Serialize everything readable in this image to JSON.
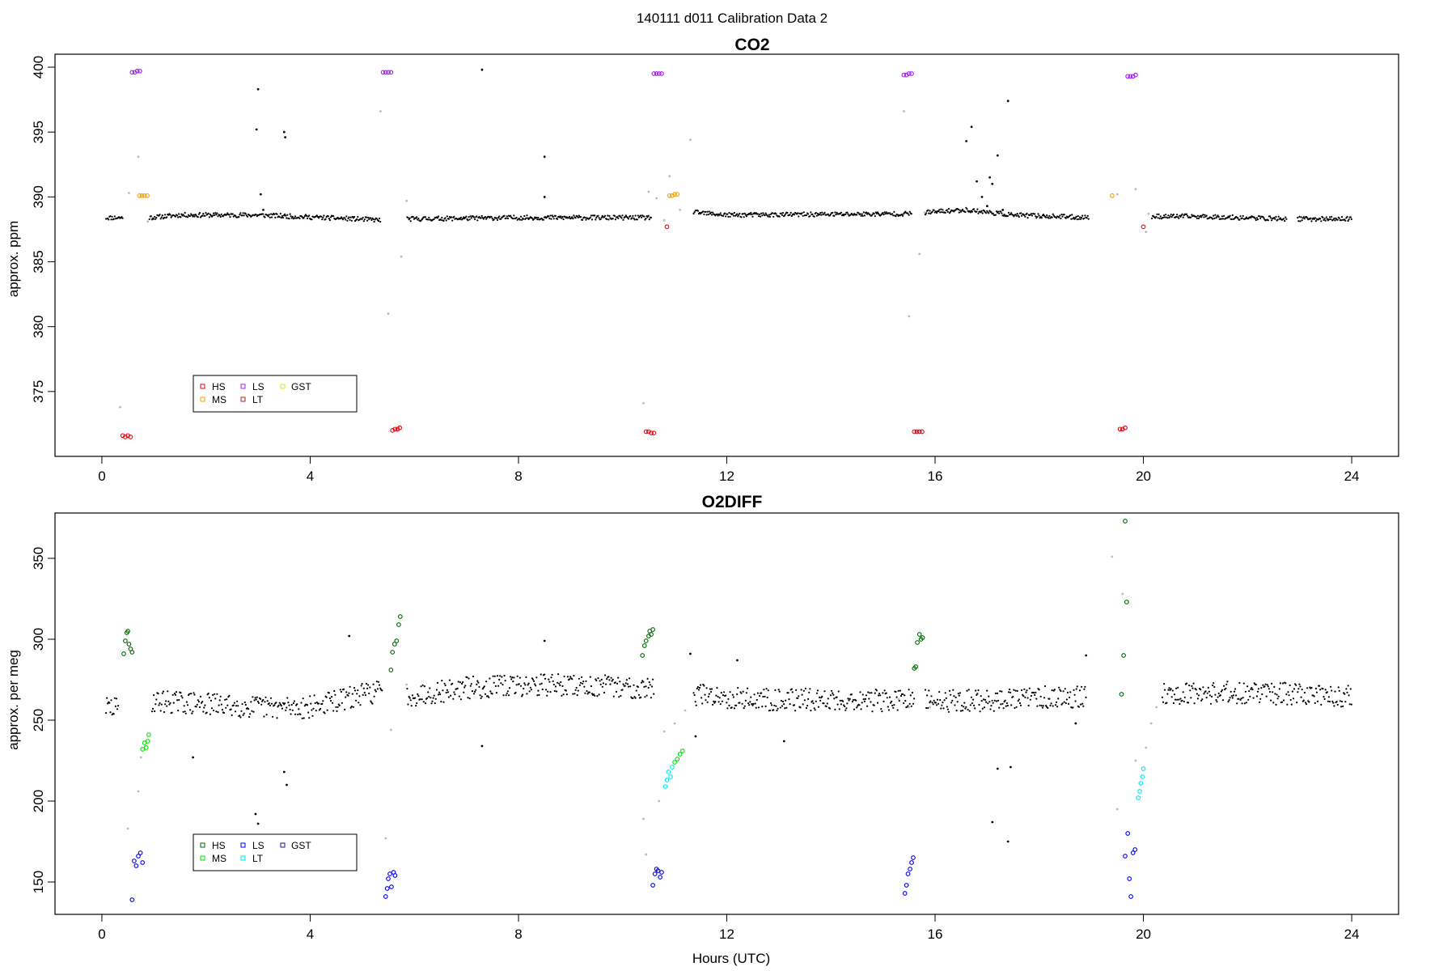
{
  "figure": {
    "suptitle": "140111   d011   Calibration Data 2",
    "xlabel": "Hours (UTC)"
  },
  "chart_data": [
    {
      "type": "scatter",
      "title": "CO2",
      "xlabel": "",
      "ylabel": "approx. ppm",
      "xlim": [
        -0.9,
        24.9
      ],
      "ylim": [
        370,
        401
      ],
      "xticks": [
        0,
        4,
        8,
        12,
        16,
        20,
        24
      ],
      "yticks": [
        375,
        380,
        385,
        390,
        395,
        400
      ],
      "legend": {
        "placement": "bottom-left",
        "entries": [
          {
            "label": "HS",
            "color": "#e8000b"
          },
          {
            "label": "MS",
            "color": "#f0a000"
          },
          {
            "label": "LS",
            "color": "#a020f0"
          },
          {
            "label": "LT",
            "color": "#b22222"
          },
          {
            "label": "GST",
            "color": "#e6e600"
          }
        ]
      },
      "baseline": {
        "color": "#000000",
        "segments": [
          {
            "x": [
              0.08,
              0.9,
              1.5,
              3.0,
              5.5,
              5.9,
              8.0,
              10.5,
              11.4,
              12.0,
              15.5,
              15.8,
              16.6,
              17.5,
              19.0,
              20.2,
              21.0,
              22.8,
              23.0,
              24.0
            ],
            "y": [
              388.4,
              388.4,
              388.6,
              388.6,
              388.2,
              388.3,
              388.4,
              388.4,
              388.8,
              388.6,
              388.7,
              388.8,
              389.0,
              388.6,
              388.4,
              388.5,
              388.5,
              388.3,
              388.3,
              388.3
            ]
          }
        ],
        "gaps": [
          [
            0.4,
            0.9
          ],
          [
            5.35,
            5.85
          ],
          [
            10.55,
            11.35
          ],
          [
            15.55,
            15.8
          ],
          [
            18.95,
            20.15
          ],
          [
            22.75,
            22.95
          ]
        ]
      },
      "series": [
        {
          "name": "HS",
          "color": "#e8000b",
          "x": [
            0.4,
            0.45,
            0.5,
            0.55
          ],
          "y": [
            371.6,
            371.5,
            371.6,
            371.5
          ]
        },
        {
          "name": "HS",
          "color": "#e8000b",
          "x": [
            5.58,
            5.63,
            5.68,
            5.72
          ],
          "y": [
            372.0,
            372.1,
            372.1,
            372.2
          ]
        },
        {
          "name": "HS",
          "color": "#e8000b",
          "x": [
            10.45,
            10.5,
            10.55,
            10.6
          ],
          "y": [
            371.9,
            371.9,
            371.8,
            371.8
          ]
        },
        {
          "name": "HS",
          "color": "#e8000b",
          "x": [
            15.6,
            15.65,
            15.7,
            15.75
          ],
          "y": [
            371.9,
            371.9,
            371.9,
            371.9
          ]
        },
        {
          "name": "HS",
          "color": "#e8000b",
          "x": [
            19.55,
            19.6,
            19.65
          ],
          "y": [
            372.1,
            372.1,
            372.2
          ]
        },
        {
          "name": "MS",
          "color": "#f0a000",
          "x": [
            0.72,
            0.77,
            0.82,
            0.87
          ],
          "y": [
            390.1,
            390.1,
            390.1,
            390.1
          ]
        },
        {
          "name": "MS",
          "color": "#f0a000",
          "x": [
            10.9,
            10.95,
            11.0,
            11.05
          ],
          "y": [
            390.1,
            390.1,
            390.2,
            390.2
          ]
        },
        {
          "name": "MS",
          "color": "#f0a000",
          "x": [
            19.4
          ],
          "y": [
            390.1
          ]
        },
        {
          "name": "LS",
          "color": "#a020f0",
          "x": [
            0.58,
            0.63,
            0.68,
            0.73
          ],
          "y": [
            399.6,
            399.6,
            399.7,
            399.7
          ]
        },
        {
          "name": "LS",
          "color": "#a020f0",
          "x": [
            5.4,
            5.45,
            5.5,
            5.55
          ],
          "y": [
            399.6,
            399.6,
            399.6,
            399.6
          ]
        },
        {
          "name": "LS",
          "color": "#a020f0",
          "x": [
            10.6,
            10.65,
            10.7,
            10.75
          ],
          "y": [
            399.5,
            399.5,
            399.5,
            399.5
          ]
        },
        {
          "name": "LS",
          "color": "#a020f0",
          "x": [
            15.4,
            15.45,
            15.5,
            15.55
          ],
          "y": [
            399.4,
            399.4,
            399.5,
            399.5
          ]
        },
        {
          "name": "LS",
          "color": "#a020f0",
          "x": [
            19.7,
            19.75,
            19.8,
            19.85
          ],
          "y": [
            399.3,
            399.3,
            399.3,
            399.4
          ]
        },
        {
          "name": "LT",
          "color": "#b22222",
          "x": [
            10.85
          ],
          "y": [
            387.7
          ]
        },
        {
          "name": "LT",
          "color": "#b22222",
          "x": [
            20.0
          ],
          "y": [
            387.7
          ]
        }
      ],
      "others": [
        {
          "color": "#000000",
          "x": [
            2.97,
            3.0,
            3.05,
            3.1,
            3.5,
            3.52,
            7.3,
            8.5,
            8.5,
            16.6,
            16.7,
            16.8,
            17.05,
            17.2,
            17.4,
            16.9,
            17.0,
            17.1,
            17.3
          ],
          "y": [
            395.2,
            398.3,
            390.2,
            389.0,
            395.0,
            394.6,
            399.8,
            393.1,
            390.0,
            394.3,
            395.4,
            391.2,
            391.5,
            393.2,
            397.4,
            390.0,
            389.3,
            391.0,
            389.0
          ]
        },
        {
          "color": "#bbbbbb",
          "x": [
            0.35,
            0.52,
            0.7,
            0.88,
            0.95,
            5.35,
            5.5,
            5.75,
            5.85,
            10.4,
            10.5,
            10.65,
            10.8,
            10.9,
            11.1,
            11.3,
            15.4,
            15.5,
            15.7,
            15.8,
            19.5,
            19.85,
            20.05,
            20.1
          ],
          "y": [
            373.8,
            390.3,
            393.1,
            388.1,
            388.4,
            396.6,
            381.0,
            385.4,
            389.7,
            374.1,
            390.4,
            389.9,
            388.2,
            391.6,
            389.0,
            394.4,
            396.6,
            380.8,
            385.6,
            388.8,
            390.2,
            390.6,
            387.3,
            388.7
          ]
        }
      ]
    },
    {
      "type": "scatter",
      "title": "O2DIFF",
      "xlabel": "Hours (UTC)",
      "ylabel": "approx. per meg",
      "xlim": [
        -0.9,
        24.9
      ],
      "ylim": [
        130,
        378
      ],
      "xticks": [
        0,
        4,
        8,
        12,
        16,
        20,
        24
      ],
      "yticks": [
        150,
        200,
        250,
        300,
        350
      ],
      "legend": {
        "placement": "bottom-left",
        "entries": [
          {
            "label": "HS",
            "color": "#006400"
          },
          {
            "label": "MS",
            "color": "#00dd00"
          },
          {
            "label": "LS",
            "color": "#0000ee"
          },
          {
            "label": "LT",
            "color": "#00e5ee"
          },
          {
            "label": "GST",
            "color": "#1a1a9a"
          }
        ]
      },
      "baseline": {
        "color": "#000000",
        "noise": 7,
        "segments": [
          {
            "x": [
              0.08,
              0.3,
              0.95,
              3.0,
              4.0,
              5.3,
              5.85,
              7.0,
              8.5,
              10.4,
              11.4,
              12.5,
              15.5,
              15.8,
              17.0,
              18.0,
              19.0,
              20.4,
              22.0,
              24.0
            ],
            "y": [
              258,
              257,
              262,
              258,
              258,
              268,
              265,
              270,
              272,
              270,
              266,
              263,
              262,
              262,
              262,
              264,
              265,
              267,
              267,
              265
            ]
          }
        ],
        "gaps": [
          [
            0.32,
            0.95
          ],
          [
            5.38,
            5.85
          ],
          [
            10.6,
            11.35
          ],
          [
            15.6,
            15.8
          ],
          [
            18.9,
            20.35
          ]
        ]
      },
      "series": [
        {
          "name": "HS",
          "color": "#006400",
          "x": [
            0.42,
            0.45,
            0.48,
            0.5,
            0.52,
            0.55,
            0.58
          ],
          "y": [
            291,
            299,
            304,
            305,
            297,
            294,
            292
          ]
        },
        {
          "name": "HS",
          "color": "#006400",
          "x": [
            5.55,
            5.58,
            5.62,
            5.66,
            5.7,
            5.73
          ],
          "y": [
            281,
            292,
            297,
            299,
            309,
            314
          ]
        },
        {
          "name": "HS",
          "color": "#006400",
          "x": [
            10.38,
            10.42,
            10.45,
            10.5,
            10.52,
            10.55,
            10.58
          ],
          "y": [
            290,
            296,
            299,
            302,
            305,
            303,
            306
          ]
        },
        {
          "name": "HS",
          "color": "#006400",
          "x": [
            15.6,
            15.63,
            15.66,
            15.7,
            15.73,
            15.76
          ],
          "y": [
            282,
            283,
            298,
            303,
            300,
            301
          ]
        },
        {
          "name": "HS",
          "color": "#006400",
          "x": [
            19.58,
            19.62,
            19.65,
            19.68
          ],
          "y": [
            266,
            290,
            373,
            323
          ]
        },
        {
          "name": "MS",
          "color": "#00dd00",
          "x": [
            0.78,
            0.82,
            0.85,
            0.88,
            0.9
          ],
          "y": [
            232,
            236,
            233,
            237,
            241
          ]
        },
        {
          "name": "MS",
          "color": "#00dd00",
          "x": [
            11.0,
            11.05,
            11.1,
            11.15
          ],
          "y": [
            224,
            226,
            229,
            231
          ]
        },
        {
          "name": "LS",
          "color": "#0000ee",
          "x": [
            0.58,
            0.62,
            0.66,
            0.7,
            0.74,
            0.78
          ],
          "y": [
            139,
            163,
            160,
            166,
            168,
            162
          ]
        },
        {
          "name": "LS",
          "color": "#0000ee",
          "x": [
            5.45,
            5.48,
            5.5,
            5.53,
            5.56,
            5.6,
            5.63
          ],
          "y": [
            141,
            146,
            152,
            155,
            147,
            156,
            154
          ]
        },
        {
          "name": "LS",
          "color": "#0000ee",
          "x": [
            10.58,
            10.62,
            10.65,
            10.68,
            10.72,
            10.75
          ],
          "y": [
            148,
            155,
            158,
            157,
            153,
            156
          ]
        },
        {
          "name": "LS",
          "color": "#0000ee",
          "x": [
            15.42,
            15.45,
            15.48,
            15.52,
            15.55,
            15.58
          ],
          "y": [
            143,
            148,
            155,
            158,
            162,
            165
          ]
        },
        {
          "name": "LS",
          "color": "#0000ee",
          "x": [
            19.65,
            19.7,
            19.73,
            19.76,
            19.8,
            19.84
          ],
          "y": [
            166,
            180,
            152,
            141,
            168,
            170
          ]
        },
        {
          "name": "LT",
          "color": "#00e5ee",
          "x": [
            10.82,
            10.85,
            10.88,
            10.92,
            10.95
          ],
          "y": [
            209,
            213,
            218,
            215,
            221
          ]
        },
        {
          "name": "LT",
          "color": "#00e5ee",
          "x": [
            19.9,
            19.93,
            19.95,
            19.98,
            20.0
          ],
          "y": [
            202,
            206,
            211,
            215,
            220
          ]
        }
      ],
      "others": [
        {
          "color": "#000000",
          "x": [
            2.95,
            3.0,
            3.5,
            3.55,
            1.75,
            4.75,
            7.3,
            8.5,
            13.1,
            17.1,
            17.2,
            17.4,
            17.45,
            18.7,
            18.9,
            11.3,
            11.4,
            12.2
          ],
          "y": [
            192,
            186,
            218,
            210,
            227,
            302,
            234,
            299,
            237,
            187,
            220,
            175,
            221,
            248,
            290,
            291,
            240,
            287
          ]
        },
        {
          "color": "#bbbbbb",
          "x": [
            0.5,
            0.7,
            0.75,
            5.45,
            5.55,
            5.85,
            10.4,
            10.45,
            10.7,
            10.8,
            11.0,
            11.2,
            15.3,
            15.5,
            15.9,
            19.4,
            19.5,
            19.6,
            19.85,
            20.05,
            20.15,
            20.25
          ],
          "y": [
            183,
            206,
            227,
            177,
            244,
            272,
            189,
            167,
            200,
            243,
            248,
            256,
            263,
            258,
            258,
            351,
            195,
            328,
            225,
            233,
            248,
            258
          ]
        }
      ]
    }
  ]
}
